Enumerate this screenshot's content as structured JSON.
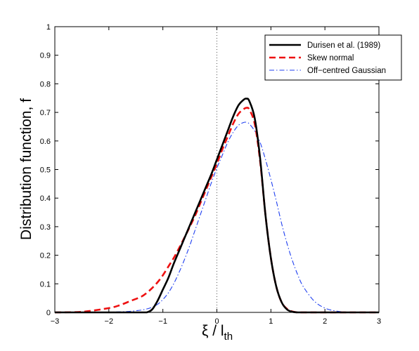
{
  "chart_data": {
    "type": "line",
    "title": "",
    "xlabel": "ξ / l_th",
    "xlabel_parts": {
      "main": "ξ  /  l",
      "sub": "th"
    },
    "ylabel": "Distribution function, f",
    "xlim": [
      -3,
      3
    ],
    "ylim": [
      0,
      1
    ],
    "xticks": [
      -3,
      -2,
      -1,
      0,
      1,
      2,
      3
    ],
    "yticks": [
      0,
      0.1,
      0.2,
      0.3,
      0.4,
      0.5,
      0.6,
      0.7,
      0.8,
      0.9,
      1
    ],
    "xtick_labels": [
      "−3",
      "−2",
      "−1",
      "0",
      "1",
      "2",
      "3"
    ],
    "ytick_labels": [
      "0",
      "0.1",
      "0.2",
      "0.3",
      "0.4",
      "0.5",
      "0.6",
      "0.7",
      "0.8",
      "0.9",
      "1"
    ],
    "grid": false,
    "legend_position": "top-right",
    "reference_line": {
      "x": 0,
      "style": "dotted",
      "color": "#555555"
    },
    "x": [
      -3.0,
      -2.5,
      -2.0,
      -1.8,
      -1.6,
      -1.4,
      -1.3,
      -1.2,
      -1.1,
      -1.0,
      -0.9,
      -0.8,
      -0.7,
      -0.6,
      -0.5,
      -0.4,
      -0.3,
      -0.2,
      -0.1,
      0.0,
      0.1,
      0.2,
      0.3,
      0.4,
      0.5,
      0.55,
      0.6,
      0.7,
      0.8,
      0.9,
      1.0,
      1.1,
      1.2,
      1.3,
      1.4,
      1.5,
      1.6,
      1.8,
      2.0,
      2.2,
      2.4,
      2.6,
      3.0
    ],
    "series": [
      {
        "name": "Durisen et al. (1989)",
        "color": "#000000",
        "style": "solid",
        "values": [
          0.0,
          0.0,
          0.0,
          0.0,
          0.0,
          0.0,
          0.0,
          0.01,
          0.04,
          0.08,
          0.12,
          0.17,
          0.215,
          0.26,
          0.305,
          0.35,
          0.395,
          0.44,
          0.485,
          0.535,
          0.585,
          0.635,
          0.685,
          0.725,
          0.745,
          0.748,
          0.74,
          0.68,
          0.54,
          0.34,
          0.19,
          0.09,
          0.035,
          0.01,
          0.002,
          0.0,
          0.0,
          0.0,
          0.0,
          0.0,
          0.0,
          0.0,
          0.0
        ]
      },
      {
        "name": "Skew normal",
        "color": "#ee1111",
        "style": "dashed",
        "values": [
          0.0,
          0.002,
          0.015,
          0.025,
          0.04,
          0.055,
          0.068,
          0.085,
          0.105,
          0.13,
          0.16,
          0.19,
          0.225,
          0.262,
          0.3,
          0.34,
          0.385,
          0.43,
          0.475,
          0.52,
          0.57,
          0.615,
          0.66,
          0.695,
          0.712,
          0.716,
          0.71,
          0.66,
          0.53,
          0.34,
          0.19,
          0.09,
          0.035,
          0.012,
          0.003,
          0.0,
          0.0,
          0.0,
          0.0,
          0.0,
          0.0,
          0.0,
          0.0
        ]
      },
      {
        "name": "Off−centred Gaussian",
        "color": "#1f3ff0",
        "style": "dash-dot",
        "values": [
          0.0,
          0.0,
          0.001,
          0.002,
          0.004,
          0.008,
          0.012,
          0.018,
          0.028,
          0.045,
          0.068,
          0.1,
          0.14,
          0.185,
          0.235,
          0.29,
          0.345,
          0.4,
          0.455,
          0.505,
          0.55,
          0.595,
          0.63,
          0.655,
          0.665,
          0.665,
          0.66,
          0.635,
          0.595,
          0.535,
          0.465,
          0.39,
          0.31,
          0.24,
          0.18,
          0.13,
          0.09,
          0.04,
          0.015,
          0.005,
          0.001,
          0.0,
          0.0
        ]
      }
    ]
  }
}
